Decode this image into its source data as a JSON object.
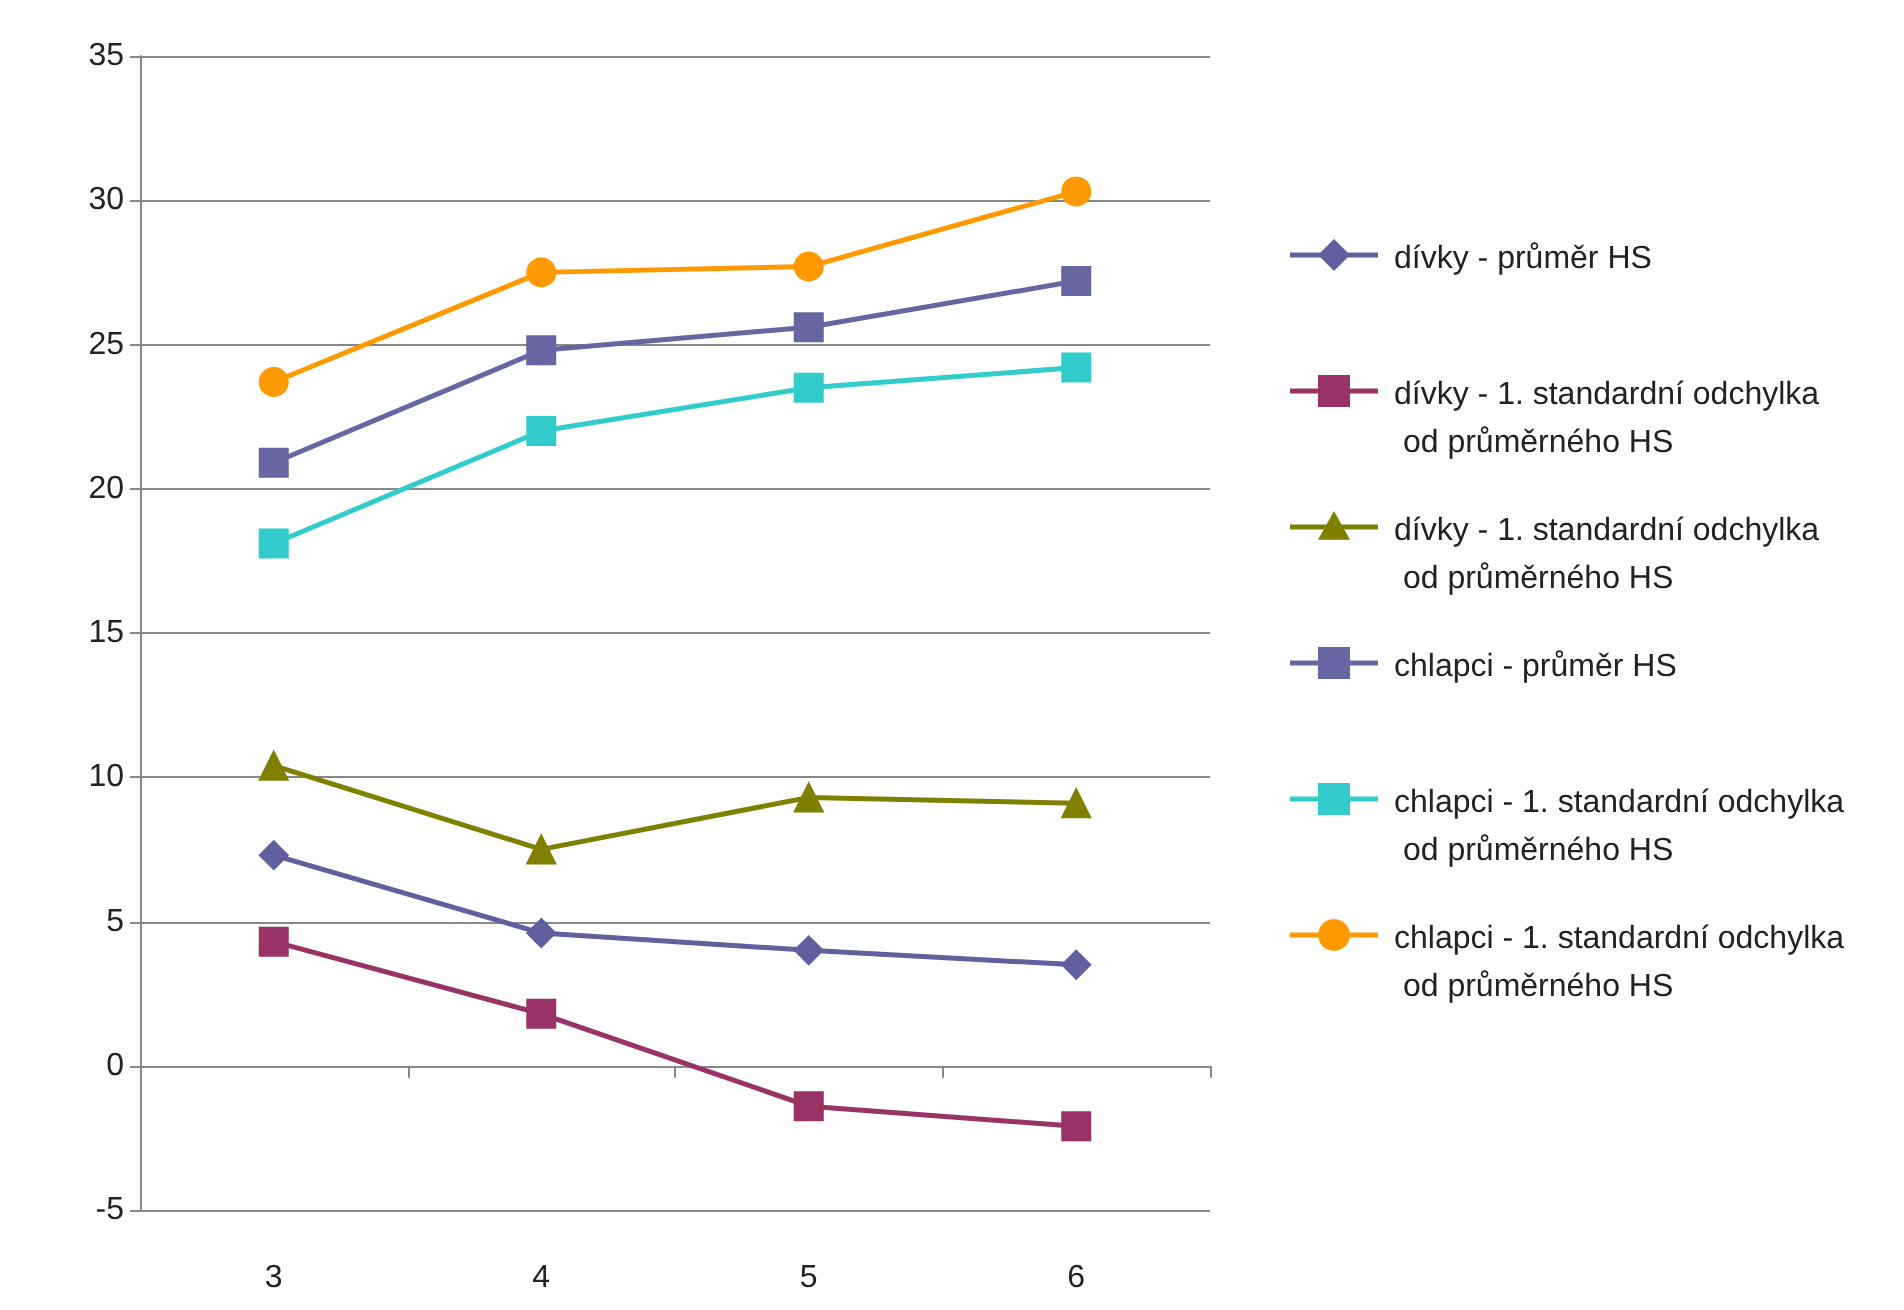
{
  "chart_data": {
    "type": "line",
    "categories": [
      "3",
      "4",
      "5",
      "6"
    ],
    "series": [
      {
        "name": "dívky - průměr HS",
        "color": "#60609f",
        "marker": "diamond",
        "values": [
          7.3,
          4.6,
          4.0,
          3.5
        ]
      },
      {
        "name": "dívky - 1. standardní odchylka od průměrného HS",
        "color": "#993366",
        "marker": "square",
        "values": [
          4.3,
          1.8,
          -1.4,
          -2.1
        ]
      },
      {
        "name": "dívky - 1. standardní odchylka od průměrného HS",
        "color": "#808000",
        "marker": "triangle",
        "values": [
          10.4,
          7.5,
          9.3,
          9.1
        ]
      },
      {
        "name": "chlapci - průměr HS",
        "color": "#6666a3",
        "marker": "square",
        "values": [
          20.9,
          24.8,
          25.6,
          27.2
        ]
      },
      {
        "name": "chlapci - 1. standardní odchylka od průměrného HS",
        "color": "#33cccc",
        "marker": "square",
        "values": [
          18.1,
          22.0,
          23.5,
          24.2
        ]
      },
      {
        "name": "chlapci - 1. standardní odchylka od průměrného HS",
        "color": "#ff9900",
        "marker": "circle",
        "values": [
          23.7,
          27.5,
          27.7,
          30.3
        ]
      }
    ],
    "ylim": [
      -5,
      35
    ],
    "yticks": [
      -5,
      0,
      5,
      10,
      15,
      20,
      25,
      30,
      35
    ],
    "grid": "y",
    "legend": "right"
  }
}
